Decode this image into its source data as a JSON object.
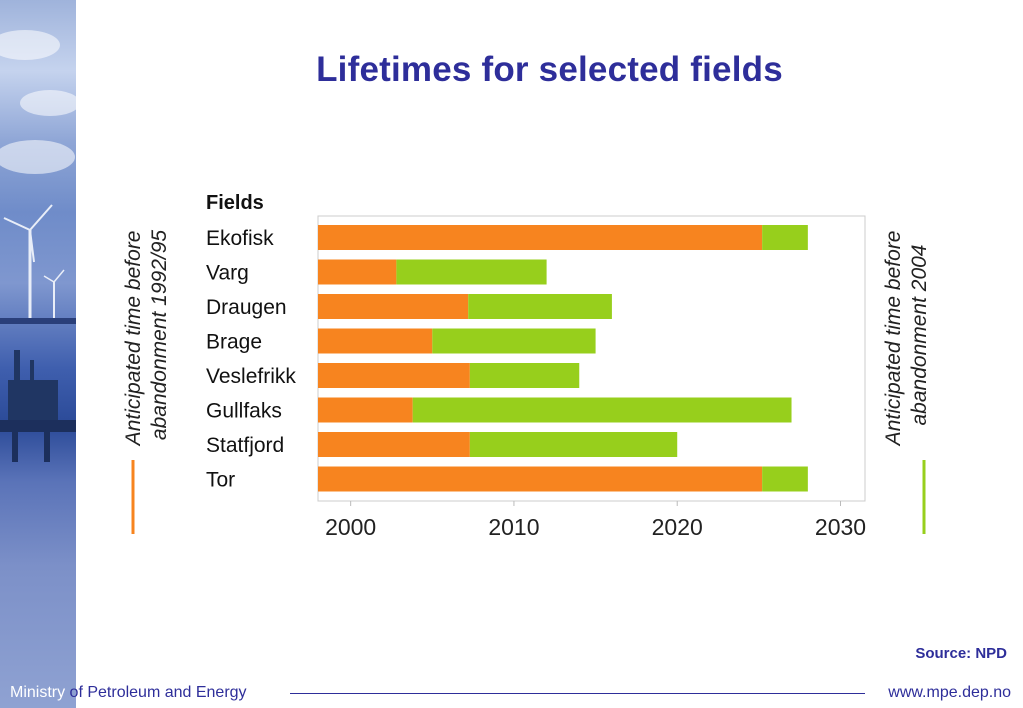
{
  "slide": {
    "title": "Lifetimes for selected fields",
    "source": "Source: NPD",
    "footer_left_part1": "Ministry",
    "footer_left_part2": " of Petroleum and Energy",
    "footer_right": "www.mpe.dep.no"
  },
  "chart_data": {
    "type": "bar",
    "orientation": "horizontal",
    "stacked": true,
    "categories_header": "Fields",
    "categories": [
      "Ekofisk",
      "Varg",
      "Draugen",
      "Brage",
      "Veslefrikk",
      "Gullfaks",
      "Statfjord",
      "Tor"
    ],
    "start_year": 1998,
    "series": [
      {
        "name": "Anticipated time before abandonment 1992/95",
        "color": "#f7841f",
        "end_values": [
          2025.2,
          2002.8,
          2007.2,
          2005.0,
          2007.3,
          2003.8,
          2007.3,
          2025.2
        ]
      },
      {
        "name": "Anticipated time before abandonment 2004",
        "color": "#97cf1c",
        "end_values": [
          2028.0,
          2012.0,
          2016.0,
          2015.0,
          2014.0,
          2027.0,
          2020.0,
          2028.0
        ]
      }
    ],
    "xticks": [
      2000,
      2010,
      2020,
      2030
    ],
    "xlim": [
      1998,
      2031.5
    ],
    "grid": false,
    "legend_left": "Anticipated time before abandonment 1992/95",
    "legend_right": "Anticipated time before abandonment 2004"
  }
}
